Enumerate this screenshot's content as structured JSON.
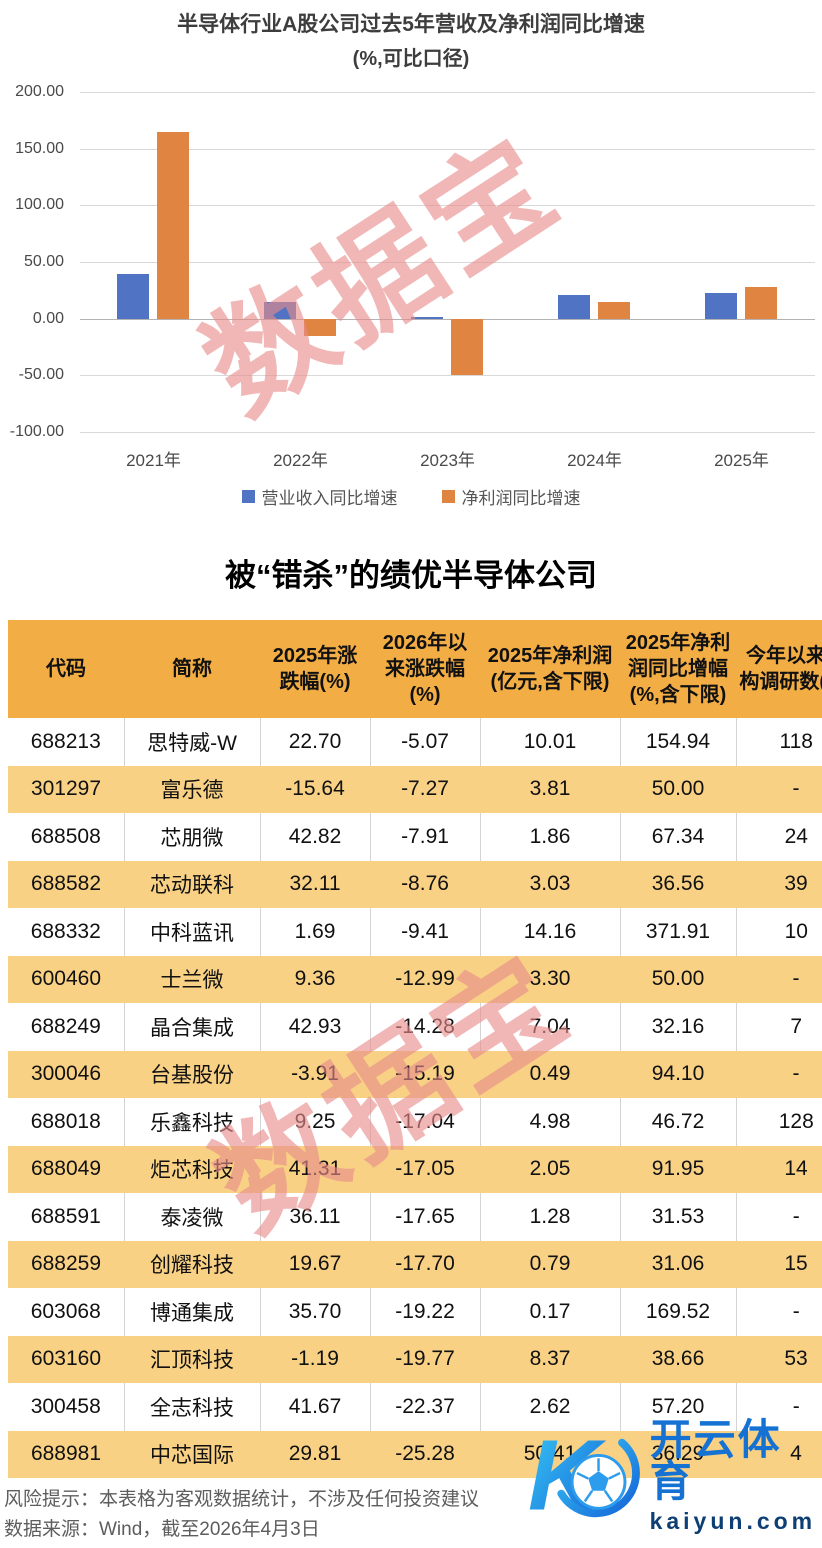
{
  "watermark": {
    "text": "数据宝",
    "color": "#E98C8C"
  },
  "chart_data": [
    {
      "type": "bar",
      "title": "半导体行业A股公司过去5年营收及净利润同比增速",
      "subtitle": "(%,可比口径)",
      "categories": [
        "2021年",
        "2022年",
        "2023年",
        "2024年",
        "2025年"
      ],
      "series": [
        {
          "name": "营业收入同比增速",
          "color": "#5173C3",
          "values": [
            39,
            15,
            1.5,
            20.5,
            23
          ]
        },
        {
          "name": "净利润同比增速",
          "color": "#E08442",
          "values": [
            165,
            -15,
            -50,
            15,
            28
          ]
        }
      ],
      "ylim": [
        -100,
        200
      ],
      "yticks": [
        200,
        150,
        100,
        50,
        0,
        -50,
        -100
      ],
      "ytick_labels": [
        "200.00",
        "150.00",
        "100.00",
        "50.00",
        "0.00",
        "-50.00",
        "-100.00"
      ],
      "grid": true,
      "legend_position": "bottom"
    },
    {
      "type": "table",
      "title": "被“错杀”的绩优半导体公司",
      "columns": [
        "代码",
        "简称",
        "2025年涨跌幅(%)",
        "2026年以来涨跌幅(%)",
        "2025年净利润(亿元,含下限)",
        "2025年净利润同比增幅(%,含下限)",
        "今年以来机构调研数(家)"
      ],
      "rows": [
        [
          "688213",
          "思特威-W",
          "22.70",
          "-5.07",
          "10.01",
          "154.94",
          "118"
        ],
        [
          "301297",
          "富乐德",
          "-15.64",
          "-7.27",
          "3.81",
          "50.00",
          "-"
        ],
        [
          "688508",
          "芯朋微",
          "42.82",
          "-7.91",
          "1.86",
          "67.34",
          "24"
        ],
        [
          "688582",
          "芯动联科",
          "32.11",
          "-8.76",
          "3.03",
          "36.56",
          "39"
        ],
        [
          "688332",
          "中科蓝讯",
          "1.69",
          "-9.41",
          "14.16",
          "371.91",
          "10"
        ],
        [
          "600460",
          "士兰微",
          "9.36",
          "-12.99",
          "3.30",
          "50.00",
          "-"
        ],
        [
          "688249",
          "晶合集成",
          "42.93",
          "-14.28",
          "7.04",
          "32.16",
          "7"
        ],
        [
          "300046",
          "台基股份",
          "-3.91",
          "-15.19",
          "0.49",
          "94.10",
          "-"
        ],
        [
          "688018",
          "乐鑫科技",
          "9.25",
          "-17.04",
          "4.98",
          "46.72",
          "128"
        ],
        [
          "688049",
          "炬芯科技",
          "41.31",
          "-17.05",
          "2.05",
          "91.95",
          "14"
        ],
        [
          "688591",
          "泰凌微",
          "36.11",
          "-17.65",
          "1.28",
          "31.53",
          "-"
        ],
        [
          "688259",
          "创耀科技",
          "19.67",
          "-17.70",
          "0.79",
          "31.06",
          "15"
        ],
        [
          "603068",
          "博通集成",
          "35.70",
          "-19.22",
          "0.17",
          "169.52",
          "-"
        ],
        [
          "603160",
          "汇顶科技",
          "-1.19",
          "-19.77",
          "8.37",
          "38.66",
          "53"
        ],
        [
          "300458",
          "全志科技",
          "41.67",
          "-22.37",
          "2.62",
          "57.20",
          "-"
        ],
        [
          "688981",
          "中芯国际",
          "29.81",
          "-25.28",
          "50.41",
          "36.29",
          "4"
        ]
      ],
      "style": {
        "header_bg": "#F3AD45",
        "alt_row_bg": "#F8D185"
      }
    }
  ],
  "footer": {
    "risk_note": "风险提示：本表格为客观数据统计，不涉及任何投资建议",
    "source_note": "数据来源：Wind，截至2026年4月3日"
  },
  "logo": {
    "brand_cn": "开云体育",
    "domain": "kaiyun.com",
    "icon": "soccer-ball-k-icon",
    "accent": "#1572D3"
  }
}
